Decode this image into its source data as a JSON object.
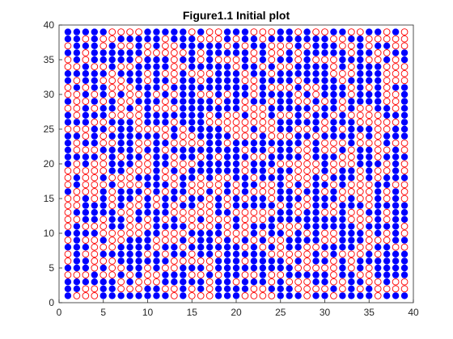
{
  "chart_data": {
    "type": "scatter",
    "title": "Figure1.1 Initial plot",
    "xlabel": "",
    "ylabel": "",
    "xlim": [
      0,
      40
    ],
    "ylim": [
      0,
      40
    ],
    "xticks": [
      0,
      5,
      10,
      15,
      20,
      25,
      30,
      35,
      40
    ],
    "yticks": [
      0,
      5,
      10,
      15,
      20,
      25,
      30,
      35,
      40
    ],
    "grid": false,
    "legend": "none",
    "grid_size": 39,
    "rows_top_to_bottom": [
      "BBBBBOOOOBBBBBOBOOBBBOOOBBOBOOBBOOBBOBO",
      "BBOBOOBBBBBOBBBOOOBOBBOBBBBBBBOOBBOOOOO",
      "OBBBOBOOBOBOOBBBBBOBOBBOOOBOBBBOOBOBBOO",
      "BBOBBBBBBOOOOOBOBBBBBOBOOBOBBBBBOBBOOBB",
      "OBOBBBBBOBBBOBBOBOOOBOBOBBOBOOOBBBOOBOB",
      "OOBOOBOOBBBBOOBBBBBOBBOBOOBBBBOBOBBBOOO",
      "BBBBBOBBBOBOOBOOOBBBOBBOBBBBBBOOOBBBOOO",
      "BOBBOOOBBOBBOBBOBBBBOOBBBBOBBBBOBBBBOOO",
      "OBOBBOOOBBBOBBBBBBBBBOBOOOBOOBBBOBOBOBB",
      "OOBOBOBOOBOBOBBOOBOBBOBBBBOBOBBBOBBBOOB",
      "BOOBOBOOBBBOBBBBBOBBOBBOBBOOBOBOBBBBOOB",
      "OOBOBBOBOBOOOBBBBBBBOOOBBBBBOBBOBOOBBOB",
      "BOBBBOOOOBBBBBBBOBOOBOOBOOBOBBOBOOOOBBB",
      "BBBOOBBBOBBBOBBBOOOOOOOOBBBBBOBBBOOOOOB",
      "OOOBBOBBOOOOBOBBBBOOOBOOBBOOBOBOBBBOOBB",
      "BBOBOBBBBBBOBOOBBBBOOOBOOOBBOBBBBOBOBBB",
      "BOBBOOBBOOBBOOOOBBOBBBBBBBBOBOOOBOOOBOO",
      "BOOOBBBBOBBOBBBBBBBBOBBOBBOOBOOBOBBOOBO",
      "BBBBOBOBBOBBOBBOBOBBBOOBBBBOBBBOOBBOBBB",
      "BOBOOBBBOOBBOOOBBBBBOBBBOOOOOBOOOBBBOBO",
      "OOOOOBBOOOBOBOBBBBBBOBBOBBOOOBOBBOBOOBO",
      "OBOOBOOOBBBOOBBOBOOBBOBBBOOOBOBBBOBOBBB",
      "OBOOOBOOOBBBOBOOOOBOBBOOBOBOBBOBOOOBBOO",
      "BOOOBOBBBOBOBBOOBOBOBOOOBBOBBOBOOOOBOBO",
      "OOBOBOBBOBOBBOBBOBOBOBBOBBBOBBBOBOOBOBO",
      "OOBBBOBOOBOBOBBOOBOBBBBBOBOOBBOBBBOBBBB",
      "OBBBBBOOBBBBOOOOOBBOOOOOBBOBBOOBOOBBOBB",
      "OOBBOBBOBOBOBOOBOOOBOOOBBBBBBBBBOOOBOBB",
      "OBOOOBBOOOBBBBOOOBOBOBBBOOOBBBBBBOBBBBO",
      "BBBBOOOOOBBOOOBBBBOOOBOBBOBOBOOBBBOBOBO",
      "OBOOBOOBBBOOOBOBBOBOBOBOOBBBBOOBBBOOOBB",
      "BBBOOOBBBBOBBOBBBBBBOBOBOBBOOBBBBOOBBOO",
      "OBOOBBBBBOBOBBOBBOBBBBBOOOOOBOBOOOBOBBB",
      "OBBOOOBBBBBBOOOOOBBBOBBBBOBOBBOBOBBBBBB",
      "BBBOBOOBBOBOOBBBOBBBBBBBBBOOOOOBOBOBBBB",
      "OOOBOOBOBOOBBBOOBOBBOOBOOBBBBBOBBOOBBBB",
      "BBBBBBOBOOOBBBBBOBBOBBBOBOOOBBOOBBOOBOO",
      "BBOOBBOOOBBOOBOBOBBBBOOBBBOOOOBOBOBOOOO",
      "BOOOBBBBBBBBOBOOOBBBOOOOBBBOBBOBBBBOBBB"
    ],
    "series": [
      {
        "marker": "filled-circle",
        "color": "#0000ff",
        "code": "B"
      },
      {
        "marker": "open-circle",
        "color": "#ff0000",
        "code": "O"
      }
    ]
  },
  "colors": {
    "axis": "#262626",
    "background": "#ffffff"
  }
}
